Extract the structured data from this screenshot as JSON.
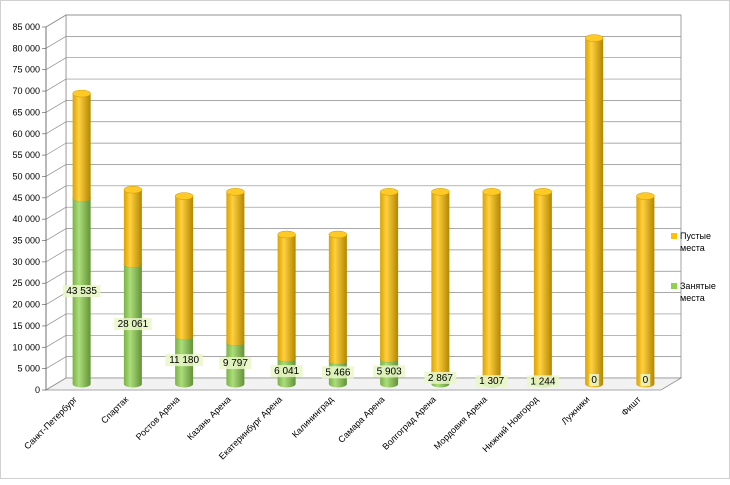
{
  "chart_data": {
    "type": "bar",
    "stacked": true,
    "style": "3d-cylinder",
    "categories": [
      "Санкт-Петербург",
      "Спартак",
      "Ростов Арена",
      "Казань Арена",
      "Екатеринбург Арена",
      "Калининград",
      "Самара Арена",
      "Волгоград Арена",
      "Мордовия Арена",
      "Нижний Новгород",
      "Лужники",
      "Фишт"
    ],
    "series": [
      {
        "name": "Занятые места",
        "color": "#8fd14f",
        "values": [
          43535,
          28061,
          11180,
          9797,
          6041,
          5466,
          5903,
          2867,
          1307,
          1244,
          0,
          0
        ],
        "labels": [
          "43 535",
          "28 061",
          "11 180",
          "9 797",
          "6 041",
          "5 466",
          "5 903",
          "2 867",
          "1 307",
          "1 244",
          "0",
          "0"
        ]
      },
      {
        "name": "Пустые места",
        "color": "#ffc000",
        "values": [
          24465,
          17439,
          32820,
          35203,
          28959,
          29534,
          39097,
          42133,
          43693,
          43756,
          81000,
          44000
        ]
      }
    ],
    "ylim": [
      0,
      85000
    ],
    "ytick_step": 5000,
    "ytick_labels": [
      "0",
      "5 000",
      "10 000",
      "15 000",
      "20 000",
      "25 000",
      "30 000",
      "35 000",
      "40 000",
      "45 000",
      "50 000",
      "55 000",
      "60 000",
      "65 000",
      "70 000",
      "75 000",
      "80 000",
      "85 000"
    ],
    "grid": true,
    "legend_position": "right",
    "legend": [
      {
        "label": "Пустые места",
        "line1": "Пустые",
        "line2": "места",
        "color": "#ffc000"
      },
      {
        "label": "Занятые места",
        "line1": "Занятые",
        "line2": "места",
        "color": "#8fd14f"
      }
    ]
  }
}
